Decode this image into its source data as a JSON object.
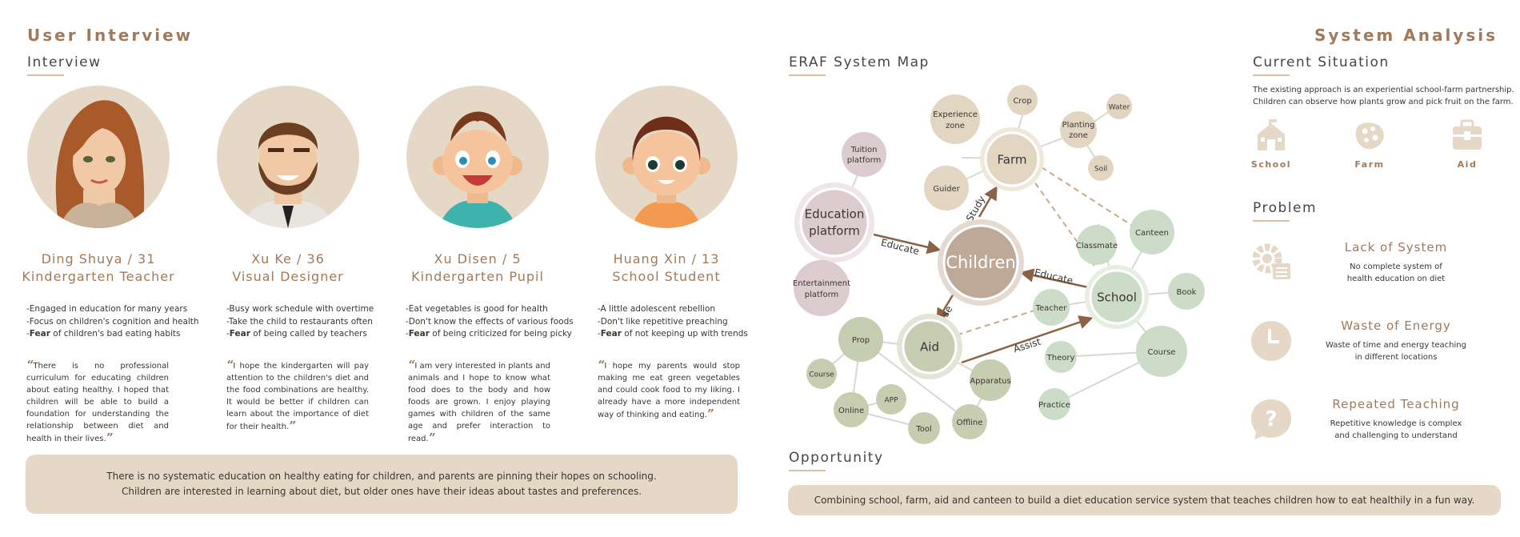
{
  "left": {
    "section_title": "User Interview",
    "sub_title": "Interview",
    "personas": [
      {
        "name_line1": "Ding Shuya / 31",
        "name_line2": "Kindergarten Teacher",
        "traits": [
          "-Engaged in education for many years",
          "-Focus on children's cognition and health"
        ],
        "fear_label": "Fear",
        "fear_text": " of children's bad eating habits",
        "quote": "There is no professional curriculum for educating children about eating healthy. I hoped that children will be able to build a foundation for understanding the relationship between diet and health in their lives."
      },
      {
        "name_line1": "Xu Ke / 36",
        "name_line2": "Visual Designer",
        "traits": [
          "-Busy work schedule with overtime",
          "-Take the child to restaurants often"
        ],
        "fear_label": "Fear",
        "fear_text": " of being called by teachers",
        "quote": "I hope the kindergarten will pay attention to the children's diet and the food combinations are healthy. It would be better if children can learn about the importance of diet for their health."
      },
      {
        "name_line1": "Xu Disen / 5",
        "name_line2": "Kindergarten Pupil",
        "traits": [
          "-Eat vegetables is good for health",
          "-Don't know the effects of various foods"
        ],
        "fear_label": "Fear",
        "fear_text": " of being criticized for being picky",
        "quote": "I am very interested in plants and animals and I hope to know what food does to the body and how foods are grown. I enjoy playing games with children of the same age and prefer interaction to read."
      },
      {
        "name_line1": "Huang Xin / 13",
        "name_line2": "School Student",
        "traits": [
          "-A little adolescent rebellion",
          "-Don't like repetitive preaching"
        ],
        "fear_label": "Fear",
        "fear_text": " of not keeping up with trends",
        "quote": "I hope my parents would stop making me eat green vegetables and could cook food to my liking. I already have a more independent way of thinking and eating."
      }
    ],
    "summary_line1": "There is no systematic education on healthy eating for children, and parents are pinning their hopes on schooling.",
    "summary_line2": "Children are interested in learning about diet, but older ones have their ideas about tastes and preferences."
  },
  "map": {
    "sub_title": "ERAF System Map",
    "nodes": {
      "children": "Children",
      "farm": "Farm",
      "school": "School",
      "aid": "Aid",
      "education_platform_1": "Education",
      "education_platform_2": "platform",
      "tuition_1": "Tuition",
      "tuition_2": "platform",
      "entertainment_1": "Entertainment",
      "entertainment_2": "platform",
      "experience_1": "Experience",
      "experience_2": "zone",
      "crop": "Crop",
      "planting_1": "Planting",
      "planting_2": "zone",
      "water": "Water",
      "soil": "Soil",
      "guider": "Guider",
      "classmate": "Classmate",
      "canteen": "Canteen",
      "book": "Book",
      "teacher": "Teacher",
      "theory": "Theory",
      "course_school": "Course",
      "practice": "Practice",
      "prop": "Prop",
      "apparatus": "Apparatus",
      "course_aid": "Course",
      "online": "Online",
      "app": "APP",
      "tool": "Tool",
      "offline": "Offline"
    },
    "edges": {
      "study": "Study",
      "educate_platform": "Educate",
      "educate_school": "Educate",
      "use": "Use",
      "assist": "Assist"
    },
    "colors": {
      "brown": "#8b6244",
      "purple_node": "#dcccd0",
      "farm_node": "#e2d6c3",
      "green_node": "#cddcc8",
      "aid_node": "#c7cdb1",
      "children_node": "#bea999"
    }
  },
  "opportunity": {
    "sub_title": "Opportunity",
    "text": "Combining school, farm, aid and canteen to build a diet education service system that teaches children how to eat healthily in a fun way."
  },
  "right": {
    "section_title": "System Analysis",
    "current_title": "Current Situation",
    "current_line1": "The existing approach is an experiential school-farm partnership.",
    "current_line2": "Children can observe how plants grow and pick fruit on the farm.",
    "icons": [
      {
        "label": "School",
        "icon": "school-icon"
      },
      {
        "label": "Farm",
        "icon": "farm-icon"
      },
      {
        "label": "Aid",
        "icon": "aid-kit-icon"
      }
    ],
    "problem_title": "Problem",
    "problems": [
      {
        "title": "Lack of System",
        "line1": "No complete system of",
        "line2": "health education on diet",
        "icon": "gear-list-icon"
      },
      {
        "title": "Waste of Energy",
        "line1": "Waste of time and energy teaching",
        "line2": "in different locations",
        "icon": "clock-icon"
      },
      {
        "title": "Repeated Teaching",
        "line1": "Repetitive knowledge is complex",
        "line2": "and challenging to understand",
        "icon": "question-bubble-icon"
      }
    ],
    "accent": "#a07a5c",
    "icon_color": "#e5d8c7"
  }
}
